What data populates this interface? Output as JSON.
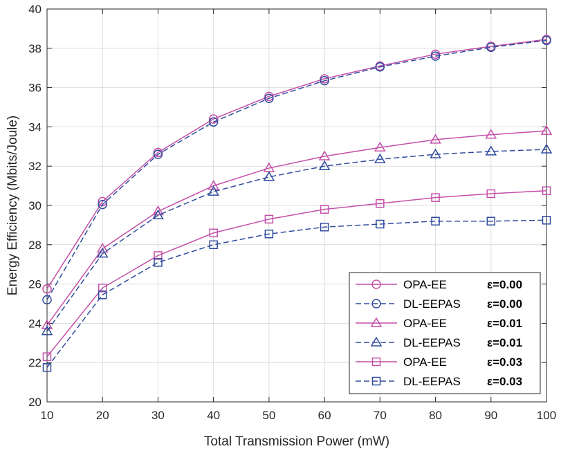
{
  "chart_data": {
    "type": "line",
    "title": "",
    "xlabel": "Total Transmission Power (mW)",
    "ylabel": "Energy Efficiency (Mbits/Joule)",
    "xlim": [
      10,
      100
    ],
    "ylim": [
      20,
      40
    ],
    "xticks": [
      10,
      20,
      30,
      40,
      50,
      60,
      70,
      80,
      90,
      100
    ],
    "yticks": [
      20,
      22,
      24,
      26,
      28,
      30,
      32,
      34,
      36,
      38,
      40
    ],
    "grid": true,
    "legend_position": "bottom-right",
    "x": [
      10,
      20,
      30,
      40,
      50,
      60,
      70,
      80,
      90,
      100
    ],
    "series": [
      {
        "name": "OPA-EE",
        "epsilon": "ε=0.00",
        "color": "#c44fa8",
        "line": "solid",
        "marker": "circle",
        "values": [
          25.75,
          30.2,
          32.7,
          34.4,
          35.55,
          36.45,
          37.1,
          37.7,
          38.1,
          38.45
        ]
      },
      {
        "name": "DL-EEPAS",
        "epsilon": "ε=0.00",
        "color": "#2f4b9e",
        "line": "dashed",
        "marker": "circle",
        "values": [
          25.2,
          30.05,
          32.6,
          34.25,
          35.45,
          36.35,
          37.05,
          37.6,
          38.05,
          38.4
        ]
      },
      {
        "name": "OPA-EE",
        "epsilon": "ε=0.01",
        "color": "#c44fa8",
        "line": "solid",
        "marker": "triangle",
        "values": [
          23.9,
          27.8,
          29.7,
          31.0,
          31.9,
          32.5,
          32.95,
          33.35,
          33.6,
          33.8
        ]
      },
      {
        "name": "DL-EEPAS",
        "epsilon": "ε=0.01",
        "color": "#2f4b9e",
        "line": "dashed",
        "marker": "triangle",
        "values": [
          23.6,
          27.55,
          29.5,
          30.7,
          31.45,
          32.0,
          32.35,
          32.6,
          32.75,
          32.85
        ]
      },
      {
        "name": "OPA-EE",
        "epsilon": "ε=0.03",
        "color": "#c44fa8",
        "line": "solid",
        "marker": "square",
        "values": [
          22.3,
          25.8,
          27.45,
          28.6,
          29.3,
          29.8,
          30.1,
          30.4,
          30.6,
          30.75
        ]
      },
      {
        "name": "DL-EEPAS",
        "epsilon": "ε=0.03",
        "color": "#2f4b9e",
        "line": "dashed",
        "marker": "square",
        "values": [
          21.75,
          25.45,
          27.1,
          28.0,
          28.55,
          28.9,
          29.05,
          29.2,
          29.2,
          29.25
        ]
      }
    ]
  }
}
